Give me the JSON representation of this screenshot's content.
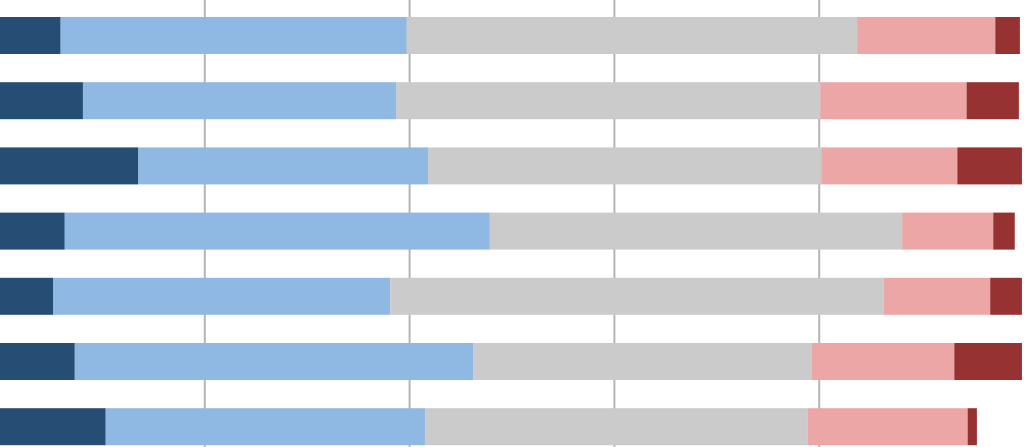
{
  "chart_data": {
    "type": "stacked-barh",
    "categories": [
      null,
      null,
      null,
      null,
      null,
      null,
      null
    ],
    "series": [
      {
        "color": "#264d73",
        "values": [
          5.9,
          8.1,
          13.5,
          6.3,
          5.2,
          7.3,
          10.3
        ]
      },
      {
        "color": "#8fb8e3",
        "values": [
          33.8,
          30.6,
          28.3,
          41.5,
          32.9,
          38.9,
          31.2
        ]
      },
      {
        "color": "#cbcbcb",
        "values": [
          44.0,
          41.4,
          38.4,
          40.3,
          48.2,
          33.1,
          37.4
        ]
      },
      {
        "color": "#eda6a6",
        "values": [
          13.5,
          14.3,
          13.3,
          8.9,
          10.4,
          13.9,
          15.6
        ]
      },
      {
        "color": "#973233",
        "values": [
          2.4,
          5.1,
          6.3,
          2.1,
          3.1,
          6.6,
          0.9
        ]
      }
    ],
    "xlim": [
      0,
      100
    ],
    "xticks": [
      20,
      40,
      60,
      80
    ],
    "grid": true
  }
}
